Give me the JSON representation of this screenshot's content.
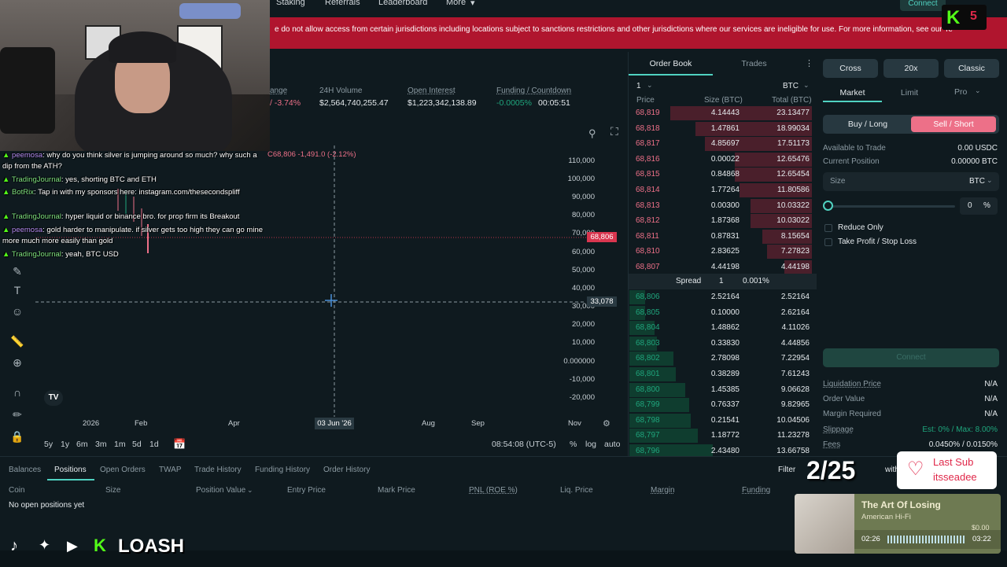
{
  "nav": {
    "staking": "Staking",
    "referrals": "Referrals",
    "leaderboard": "Leaderboard",
    "more": "More",
    "connect": "Connect"
  },
  "banner": {
    "text": "e do not allow access from certain jurisdictions including locations subject to sanctions restrictions and other jurisdictions where our services are ineligible for use. For more information, see our Te"
  },
  "market": {
    "change_label": "ange",
    "change_value": "/ -3.74%",
    "volume_label": "24H Volume",
    "volume_value": "$2,564,740,255.47",
    "oi_label": "Open Interest",
    "oi_value": "$1,223,342,138.89",
    "funding_label": "Funding / Countdown",
    "funding_rate": "-0.0005%",
    "funding_countdown": "00:05:51"
  },
  "chart": {
    "ohlc": "C68,806 -1,491.0 (-2.12%)",
    "price_tag": "68,806",
    "cursor_tag": "33,078",
    "cursor_date": "03 Jun '26",
    "y_ticks": [
      "110,000",
      "100,000",
      "90,000",
      "80,000",
      "70,000",
      "60,000",
      "50,000",
      "40,000",
      "30,000",
      "20,000",
      "10,000",
      "0.000000",
      "-10,000",
      "-20,000"
    ],
    "x_ticks": [
      "2026",
      "Feb",
      "Apr",
      "Aug",
      "Sep",
      "Nov"
    ],
    "ranges": [
      "5y",
      "1y",
      "6m",
      "3m",
      "1m",
      "5d",
      "1d"
    ],
    "clock": "08:54:08 (UTC-5)",
    "pct": "%",
    "log": "log",
    "auto": "auto"
  },
  "chat": [
    {
      "user": "peemosa",
      "msg": ": why do you think silver is jumping around so much? why such a"
    },
    {
      "user": "",
      "msg": "dip from the ATH?"
    },
    {
      "user": "TradingJournal",
      "msg": ": yes, shorting BTC and ETH"
    },
    {
      "user": "BotRix",
      "msg": ": Tap in with my sponsors here: instagram.com/thesecondspliff"
    },
    {
      "user": "TradingJournal",
      "msg": ": hyper liquid or binance bro. for prop firm its Breakout"
    },
    {
      "user": "peemosa",
      "msg": ": gold harder to manipulate. if silver gets too high they can go mine"
    },
    {
      "user": "",
      "msg": "more much more easily than gold"
    },
    {
      "user": "TradingJournal",
      "msg": ": yeah, BTC USD"
    }
  ],
  "orderbook": {
    "tab_book": "Order Book",
    "tab_trades": "Trades",
    "group": "1",
    "asset": "BTC",
    "col_price": "Price",
    "col_size": "Size (BTC)",
    "col_total": "Total (BTC)",
    "asks": [
      {
        "price": "68,819",
        "size": "4.14443",
        "total": "23.13477"
      },
      {
        "price": "68,818",
        "size": "1.47861",
        "total": "18.99034"
      },
      {
        "price": "68,817",
        "size": "4.85697",
        "total": "17.51173"
      },
      {
        "price": "68,816",
        "size": "0.00022",
        "total": "12.65476"
      },
      {
        "price": "68,815",
        "size": "0.84868",
        "total": "12.65454"
      },
      {
        "price": "68,814",
        "size": "1.77264",
        "total": "11.80586"
      },
      {
        "price": "68,813",
        "size": "0.00300",
        "total": "10.03322"
      },
      {
        "price": "68,812",
        "size": "1.87368",
        "total": "10.03022"
      },
      {
        "price": "68,811",
        "size": "0.87831",
        "total": "8.15654"
      },
      {
        "price": "68,810",
        "size": "2.83625",
        "total": "7.27823"
      },
      {
        "price": "68,807",
        "size": "4.44198",
        "total": "4.44198"
      }
    ],
    "spread_label": "Spread",
    "spread_value": "1",
    "spread_pct": "0.001%",
    "bids": [
      {
        "price": "68,806",
        "size": "2.52164",
        "total": "2.52164"
      },
      {
        "price": "68,805",
        "size": "0.10000",
        "total": "2.62164"
      },
      {
        "price": "68,804",
        "size": "1.48862",
        "total": "4.11026"
      },
      {
        "price": "68,803",
        "size": "0.33830",
        "total": "4.44856"
      },
      {
        "price": "68,802",
        "size": "2.78098",
        "total": "7.22954"
      },
      {
        "price": "68,801",
        "size": "0.38289",
        "total": "7.61243"
      },
      {
        "price": "68,800",
        "size": "1.45385",
        "total": "9.06628"
      },
      {
        "price": "68,799",
        "size": "0.76337",
        "total": "9.82965"
      },
      {
        "price": "68,798",
        "size": "0.21541",
        "total": "10.04506"
      },
      {
        "price": "68,797",
        "size": "1.18772",
        "total": "11.23278"
      },
      {
        "price": "68,796",
        "size": "2.43480",
        "total": "13.66758"
      }
    ]
  },
  "trade": {
    "cross": "Cross",
    "leverage": "20x",
    "classic": "Classic",
    "market": "Market",
    "limit": "Limit",
    "pro": "Pro",
    "buy": "Buy / Long",
    "sell": "Sell / Short",
    "avail_label": "Available to Trade",
    "avail_value": "0.00 USDC",
    "pos_label": "Current Position",
    "pos_value": "0.00000 BTC",
    "size_label": "Size",
    "size_asset": "BTC",
    "slider_value": "0",
    "slider_unit": "%",
    "reduce_only": "Reduce Only",
    "tpsl": "Take Profit / Stop Loss",
    "connect": "Connect",
    "liq_label": "Liquidation Price",
    "liq_value": "N/A",
    "ov_label": "Order Value",
    "ov_value": "N/A",
    "mr_label": "Margin Required",
    "mr_value": "N/A",
    "slip_label": "Slippage",
    "slip_value": "Est: 0% / Max: 8.00%",
    "fees_label": "Fees",
    "fees_value": "0.0450% / 0.0150%"
  },
  "bottom": {
    "tabs": [
      "Balances",
      "Positions",
      "Open Orders",
      "TWAP",
      "Trade History",
      "Funding History",
      "Order History"
    ],
    "filter": "Filter",
    "cols": [
      "Coin",
      "Size",
      "Position Value",
      "Entry Price",
      "Mark Price",
      "PNL (ROE %)",
      "Liq. Price",
      "Margin",
      "Funding"
    ],
    "empty": "No open positions yet"
  },
  "overlay": {
    "brand": "LOASH",
    "counter": "2/25",
    "badge": "5",
    "sub_title": "Last Sub",
    "sub_name": "itsseadee",
    "song": "The Art Of Losing",
    "artist": "American Hi-Fi",
    "time_now": "02:26",
    "time_total": "03:22",
    "peek_text": "with",
    "peek_price": "$0.00"
  },
  "colors": {
    "accent": "#50d2c1",
    "red": "#ed7088",
    "green": "#1fa67d",
    "banner": "#b0152e"
  }
}
